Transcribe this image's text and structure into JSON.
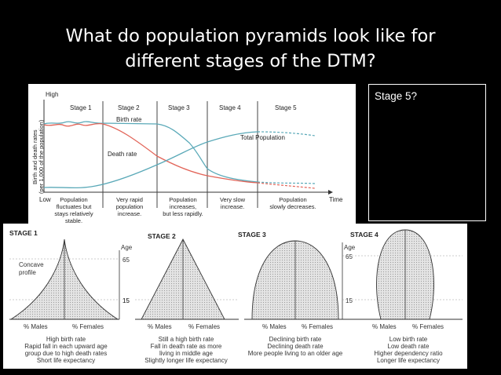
{
  "slide": {
    "title_line1": "What do population pyramids look like for",
    "title_line2": "different stages of the DTM?",
    "stage5_box_label": "Stage 5?"
  },
  "dtm_graph": {
    "y_high": "High",
    "y_low": "Low",
    "y_label_1": "Birth and death rates",
    "y_label_2": "(per 1,000 of the population)",
    "x_label": "Time",
    "stage_labels": [
      "Stage 1",
      "Stage 2",
      "Stage 3",
      "Stage 4",
      "Stage 5"
    ],
    "curve_labels": {
      "birth": "Birth rate",
      "death": "Death rate",
      "total": "Total Population"
    },
    "notes": {
      "s1": [
        "Population",
        "fluctuates but",
        "stays relatively",
        "stable."
      ],
      "s2": [
        "Very rapid",
        "population",
        "increase."
      ],
      "s3": [
        "Population",
        "increases,",
        "but less rapidly."
      ],
      "s4": [
        "Very slow",
        "increase."
      ],
      "s5": [
        "Population",
        "slowly decreases."
      ]
    }
  },
  "pyramids": {
    "stage1": {
      "heading": "STAGE 1",
      "annot": [
        "Concave",
        "profile"
      ],
      "age_label": "Age",
      "age_65": "65",
      "age_15": "15",
      "males": "% Males",
      "females": "% Females",
      "caption": [
        "High birth rate",
        "Rapid fall in each upward age",
        "group due to high death rates",
        "Short life expectancy"
      ]
    },
    "stage2": {
      "heading": "STAGE 2",
      "age_15": "15",
      "males": "% Males",
      "females": "% Females",
      "caption": [
        "Still a high birth rate",
        "Fall in death rate as more",
        "living in middle age",
        "Slightly longer life expectancy"
      ]
    },
    "stage3": {
      "heading": "STAGE 3",
      "males": "% Males",
      "females": "% Females",
      "caption": [
        "Declining birth rate",
        "Declining death rate",
        "More people living to an older age"
      ]
    },
    "stage4": {
      "heading": "STAGE 4",
      "age_label": "Age",
      "age_65": "65",
      "age_15": "15",
      "males": "% Males",
      "females": "% Females",
      "caption": [
        "Low birth rate",
        "Low death rate",
        "Higher dependency ratio",
        "Longer life expectancy"
      ]
    }
  },
  "colors": {
    "birth_curve": "#5aa9b8",
    "death_curve": "#e26458",
    "total_curve": "#5aa9b8",
    "stage_divider": "#444444",
    "pyramid_fill": "#d9d9d9"
  }
}
